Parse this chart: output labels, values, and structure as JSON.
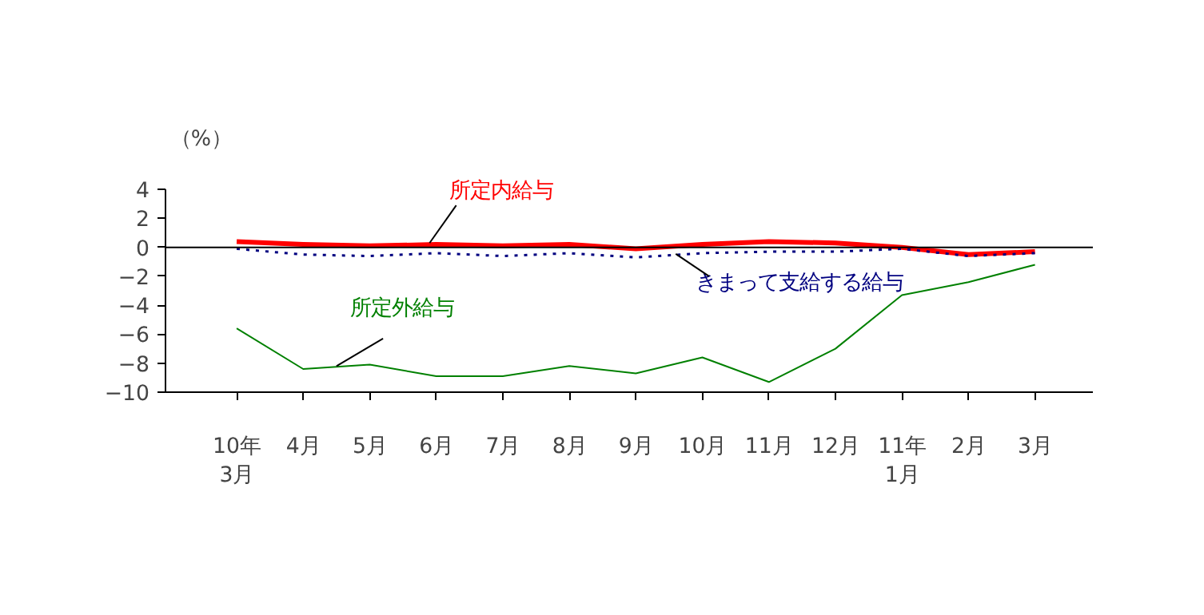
{
  "chart_data": {
    "type": "line",
    "ylabel": "（%）",
    "categories": [
      "10年\n3月",
      "4月",
      "5月",
      "6月",
      "7月",
      "8月",
      "9月",
      "10月",
      "11月",
      "12月",
      "11年\n1月",
      "2月",
      "3月"
    ],
    "series": [
      {
        "name": "所定内給与",
        "color": "#ff0000",
        "values": [
          0.4,
          0.2,
          0.1,
          0.2,
          0.1,
          0.2,
          -0.1,
          0.2,
          0.4,
          0.3,
          0.0,
          -0.5,
          -0.3
        ]
      },
      {
        "name": "きまって支給する給与",
        "color": "#000080",
        "line_style": "dotted",
        "values": [
          -0.1,
          -0.5,
          -0.6,
          -0.4,
          -0.6,
          -0.4,
          -0.7,
          -0.4,
          -0.3,
          -0.3,
          -0.1,
          -0.6,
          -0.4
        ]
      },
      {
        "name": "所定外給与",
        "color": "#008000",
        "values": [
          -5.6,
          -8.4,
          -8.1,
          -8.9,
          -8.9,
          -8.2,
          -8.7,
          -7.6,
          -9.3,
          -7.0,
          -3.3,
          -2.4,
          -1.2
        ]
      }
    ],
    "ylim": [
      -10,
      4
    ],
    "yticks": [
      -10,
      -8,
      -6,
      -4,
      -2,
      0,
      2,
      4
    ],
    "ref_lines": [
      {
        "axis": "y",
        "value": 0,
        "color": "#000000"
      }
    ],
    "grid": false,
    "legend": false
  }
}
